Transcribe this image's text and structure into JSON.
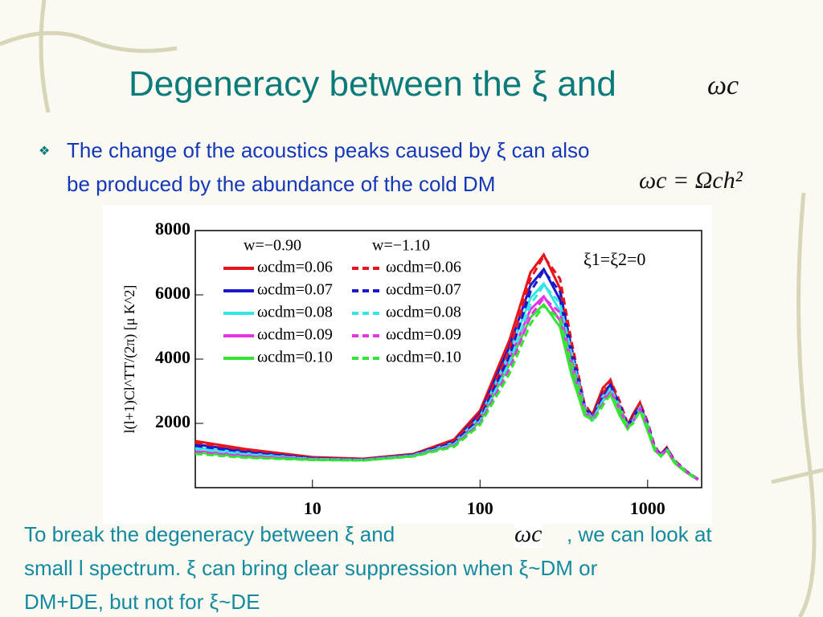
{
  "title": "Degeneracy between the ξ and",
  "title_math": "ωc",
  "bullet": {
    "lines": [
      "The change of the acoustics peaks caused by ξ can also",
      "be produced by the abundance of the cold DM"
    ],
    "math": "ωc = Ωch²"
  },
  "footer": {
    "line1_a": "To break the degeneracy between ξ and",
    "line1_math": "ωc",
    "line1_b": ", we can look at",
    "line2": "small l spectrum. ξ can bring clear suppression when ξ~DM or",
    "line3": "DM+DE, but not for ξ~DE"
  },
  "chart_data": {
    "type": "line",
    "ylabel": "l(l+1)Cl^TT/(2π) [μ K^2]",
    "xscale": "log",
    "xlim": [
      2,
      2100
    ],
    "ylim": [
      0,
      8000
    ],
    "xticks": [
      10,
      100,
      1000
    ],
    "yticks": [
      2000,
      4000,
      6000,
      8000
    ],
    "legend_headers": [
      "w=−0.90",
      "w=−1.10"
    ],
    "annotation": "ξ1=ξ2=0",
    "x": [
      2,
      4,
      10,
      20,
      40,
      70,
      100,
      150,
      200,
      240,
      300,
      350,
      420,
      470,
      540,
      600,
      680,
      760,
      820,
      900,
      1000,
      1100,
      1200,
      1300,
      1450,
      1700,
      2000
    ],
    "series": [
      {
        "name": "ωcdm=0.06",
        "color": "#e8141b",
        "dashed": false,
        "values": [
          1450,
          1200,
          950,
          900,
          1050,
          1500,
          2400,
          4600,
          6700,
          7250,
          6200,
          4200,
          2450,
          2300,
          3100,
          3350,
          2500,
          1950,
          2300,
          2650,
          1900,
          1250,
          1050,
          1250,
          800,
          500,
          250
        ]
      },
      {
        "name": "ωcdm=0.07",
        "color": "#1a1acc",
        "dashed": false,
        "values": [
          1350,
          1130,
          920,
          880,
          1030,
          1450,
          2300,
          4400,
          6300,
          6800,
          5850,
          4000,
          2400,
          2250,
          2950,
          3200,
          2400,
          1900,
          2250,
          2550,
          1850,
          1220,
          1030,
          1220,
          790,
          500,
          250
        ]
      },
      {
        "name": "ωcdm=0.08",
        "color": "#33e6e6",
        "dashed": false,
        "values": [
          1250,
          1070,
          900,
          870,
          1010,
          1400,
          2200,
          4200,
          5900,
          6350,
          5500,
          3800,
          2350,
          2200,
          2850,
          3100,
          2350,
          1870,
          2200,
          2500,
          1820,
          1200,
          1020,
          1200,
          780,
          490,
          250
        ]
      },
      {
        "name": "ωcdm=0.09",
        "color": "#e633e6",
        "dashed": false,
        "values": [
          1150,
          1000,
          880,
          860,
          990,
          1350,
          2100,
          4000,
          5550,
          5950,
          5200,
          3650,
          2300,
          2150,
          2750,
          3000,
          2300,
          1850,
          2150,
          2450,
          1800,
          1180,
          1000,
          1180,
          770,
          480,
          240
        ]
      },
      {
        "name": "ωcdm=0.10",
        "color": "#33e633",
        "dashed": false,
        "values": [
          1100,
          950,
          870,
          850,
          980,
          1320,
          2050,
          3850,
          5300,
          5700,
          5000,
          3550,
          2250,
          2100,
          2700,
          2900,
          2250,
          1820,
          2100,
          2400,
          1770,
          1160,
          990,
          1160,
          760,
          470,
          240
        ]
      },
      {
        "name": "ωcdm=0.06",
        "color": "#e8141b",
        "dashed": true,
        "values": [
          1400,
          1170,
          940,
          895,
          1040,
          1450,
          2250,
          4300,
          6500,
          7200,
          6500,
          4600,
          2600,
          2250,
          2900,
          3350,
          2700,
          2000,
          2200,
          2650,
          2050,
          1300,
          1020,
          1250,
          850,
          520,
          260
        ]
      },
      {
        "name": "ωcdm=0.07",
        "color": "#1a1acc",
        "dashed": true,
        "values": [
          1300,
          1100,
          910,
          875,
          1020,
          1400,
          2150,
          4100,
          6100,
          6750,
          6100,
          4400,
          2550,
          2200,
          2800,
          3200,
          2600,
          1950,
          2150,
          2550,
          2000,
          1270,
          1000,
          1220,
          830,
          510,
          255
        ]
      },
      {
        "name": "ωcdm=0.08",
        "color": "#33e6e6",
        "dashed": true,
        "values": [
          1200,
          1040,
          890,
          865,
          1000,
          1350,
          2070,
          3900,
          5700,
          6300,
          5750,
          4200,
          2500,
          2150,
          2700,
          3100,
          2550,
          1920,
          2100,
          2500,
          1960,
          1250,
          990,
          1200,
          820,
          500,
          250
        ]
      },
      {
        "name": "ωcdm=0.09",
        "color": "#e633e6",
        "dashed": true,
        "values": [
          1100,
          980,
          870,
          855,
          980,
          1300,
          2000,
          3700,
          5350,
          5900,
          5450,
          4000,
          2450,
          2100,
          2600,
          3000,
          2500,
          1900,
          2050,
          2450,
          1930,
          1230,
          980,
          1180,
          810,
          490,
          245
        ]
      },
      {
        "name": "ωcdm=0.10",
        "color": "#33e633",
        "dashed": true,
        "values": [
          1050,
          930,
          860,
          845,
          970,
          1270,
          1950,
          3550,
          5100,
          5650,
          5250,
          3900,
          2400,
          2050,
          2550,
          2900,
          2450,
          1870,
          2000,
          2400,
          1900,
          1210,
          970,
          1160,
          800,
          480,
          240
        ]
      }
    ]
  }
}
